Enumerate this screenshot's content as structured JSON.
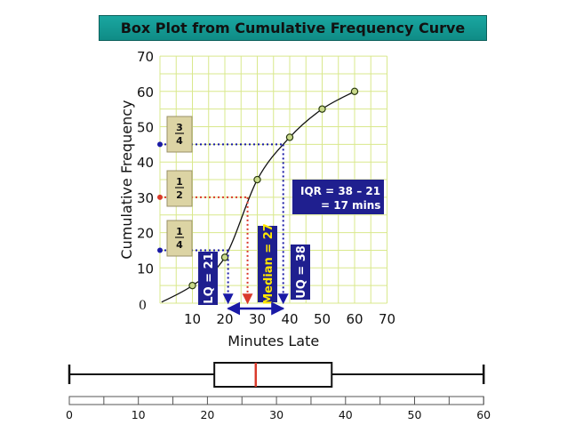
{
  "chart_data": [
    {
      "type": "line",
      "title": "Box Plot from Cumulative Frequency Curve",
      "xlabel": "Minutes Late",
      "ylabel": "Cumulative Frequency",
      "xlim": [
        0,
        70
      ],
      "ylim": [
        0,
        70
      ],
      "grid": true,
      "x_ticks": [
        "10",
        "20",
        "30",
        "40",
        "50",
        "60",
        "70"
      ],
      "y_ticks": [
        "0",
        "10",
        "20",
        "30",
        "40",
        "50",
        "60",
        "70"
      ],
      "series": [
        {
          "x": [
            10,
            20,
            30,
            40,
            50,
            60
          ],
          "y": [
            5,
            13,
            35,
            47,
            55,
            60
          ]
        }
      ],
      "quartile_readings": [
        {
          "fraction": "1/4",
          "frac_num": "1",
          "frac_den": "4",
          "cf": 15,
          "x": 21,
          "label": "LQ = 21",
          "color": "#1a1aa6"
        },
        {
          "fraction": "1/2",
          "frac_num": "1",
          "frac_den": "2",
          "cf": 30,
          "x": 27,
          "label": "Median = 27",
          "color": "#d93a2b"
        },
        {
          "fraction": "3/4",
          "frac_num": "3",
          "frac_den": "4",
          "cf": 45,
          "x": 38,
          "label": "UQ = 38",
          "color": "#1a1aa6"
        }
      ],
      "iqr_text": [
        "IQR  = 38 – 21",
        "= 17 mins"
      ]
    },
    {
      "type": "box",
      "min": 0,
      "q1": 21,
      "median": 27,
      "q3": 38,
      "max": 60,
      "axis_ticks": [
        "0",
        "10",
        "20",
        "30",
        "40",
        "50",
        "60"
      ],
      "median_color": "#d93a2b"
    }
  ]
}
